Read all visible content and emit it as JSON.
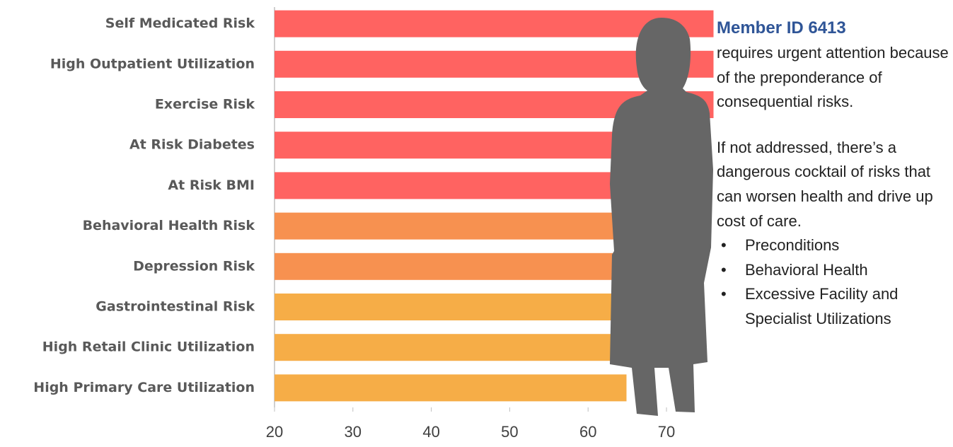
{
  "chart_data": {
    "type": "hbar",
    "categories": [
      "Self Medicated Risk",
      "High Outpatient Utilization",
      "Exercise Risk",
      "At Risk Diabetes",
      "At Risk BMI",
      "Behavioral Health Risk",
      "Depression Risk",
      "Gastrointestinal Risk",
      "High Retail Clinic Utilization",
      "High Primary Care Utilization"
    ],
    "values": [
      76,
      76,
      76,
      74.3,
      75,
      72,
      71,
      68.9,
      68,
      64.9
    ],
    "colors": [
      "#ff6361",
      "#ff6361",
      "#ff6361",
      "#ff6361",
      "#ff6361",
      "#f79150",
      "#f79150",
      "#f6ad47",
      "#f6ad47",
      "#f6ad47"
    ],
    "xlim": [
      20,
      76
    ],
    "xticks": [
      20,
      30,
      40,
      50,
      60,
      70
    ],
    "grid": false,
    "annotation": {
      "heading": "Member ID 6413",
      "body1": "requires urgent attention because of the preponderance of consequential risks.",
      "body2": "If not addressed, there’s a dangerous cocktail of risks that can worsen health and drive up cost of care.",
      "bullets": [
        "Preconditions",
        "Behavioral Health",
        "Excessive Facility and Specialist Utilizations"
      ]
    }
  }
}
